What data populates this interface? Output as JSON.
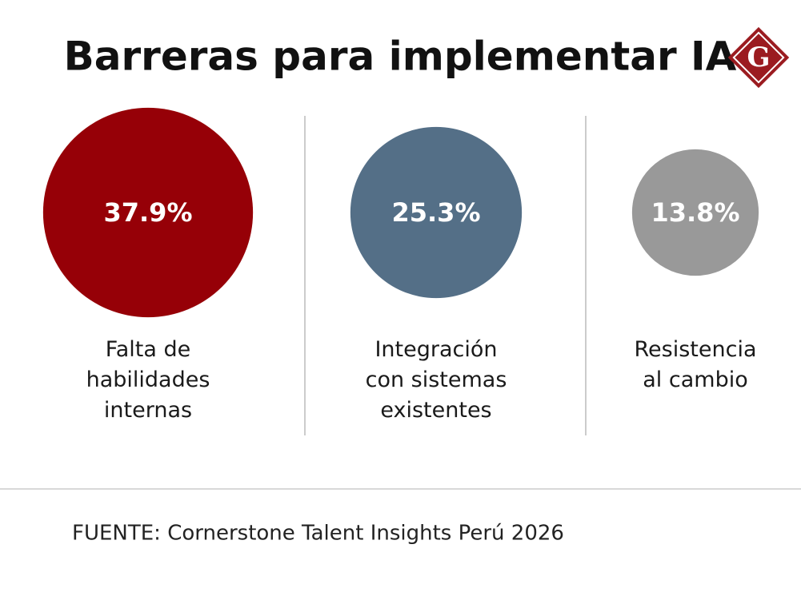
{
  "chart_data": {
    "type": "bubble",
    "title": "Barreras para implementar IA",
    "categories": [
      "Falta de\nhabilidades\ninternas",
      "Integración\ncon sistemas\nexistentes",
      "Resistencia\nal cambio"
    ],
    "values": [
      37.9,
      25.3,
      13.8
    ],
    "value_labels": [
      "37.9%",
      "25.3%",
      "13.8%"
    ],
    "colors": [
      "#960007",
      "#546f87",
      "#999999"
    ],
    "source": "FUENTE: Cornerstone Talent Insights Perú 2026",
    "logo": "G"
  }
}
